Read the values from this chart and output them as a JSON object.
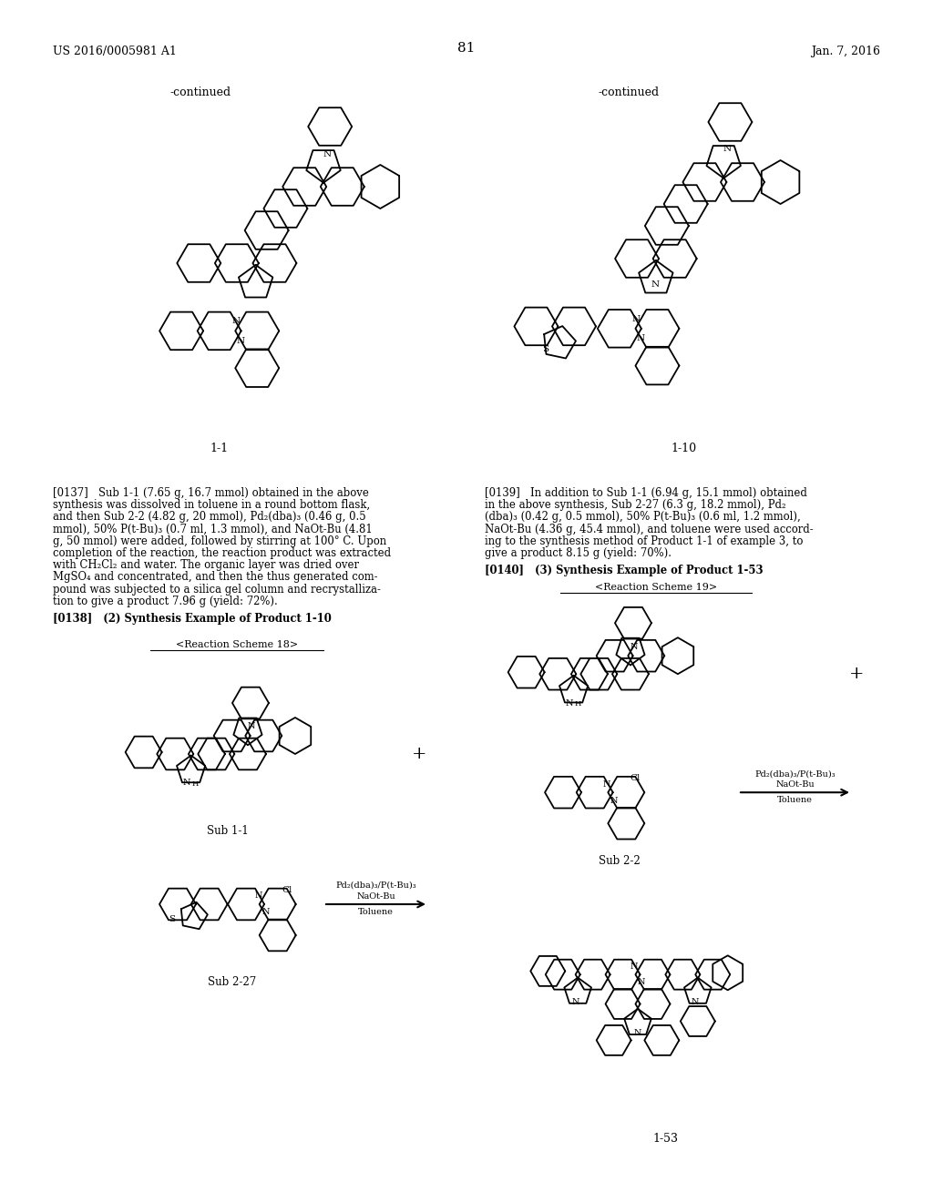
{
  "background_color": "#ffffff",
  "page_number": "81",
  "header_left": "US 2016/0005981 A1",
  "header_right": "Jan. 7, 2016",
  "continued_left": "-continued",
  "continued_right": "-continued",
  "label_1_1": "1-1",
  "label_1_10": "1-10",
  "reaction_scheme_18": "<Reaction Scheme 18>",
  "reaction_scheme_19": "<Reaction Scheme 19>",
  "sub_1_1_label": "Sub 1-1",
  "sub_2_27_label": "Sub 2-27",
  "sub_2_2_label": "Sub 2-2",
  "label_1_53": "1-53",
  "p137_lines": [
    "[0137]   Sub 1-1 (7.65 g, 16.7 mmol) obtained in the above",
    "synthesis was dissolved in toluene in a round bottom flask,",
    "and then Sub 2-2 (4.82 g, 20 mmol), Pd₂(dba)₃ (0.46 g, 0.5",
    "mmol), 50% P(t-Bu)₃ (0.7 ml, 1.3 mmol), and NaOt-Bu (4.81",
    "g, 50 mmol) were added, followed by stirring at 100° C. Upon",
    "completion of the reaction, the reaction product was extracted",
    "with CH₂Cl₂ and water. The organic layer was dried over",
    "MgSO₄ and concentrated, and then the thus generated com-",
    "pound was subjected to a silica gel column and recrystalliza-",
    "tion to give a product 7.96 g (yield: 72%)."
  ],
  "p138": "[0138]   (2) Synthesis Example of Product 1-10",
  "p139_lines": [
    "[0139]   In addition to Sub 1-1 (6.94 g, 15.1 mmol) obtained",
    "in the above synthesis, Sub 2-27 (6.3 g, 18.2 mmol), Pd₂",
    "(dba)₃ (0.42 g, 0.5 mmol), 50% P(t-Bu)₃ (0.6 ml, 1.2 mmol),",
    "NaOt-Bu (4.36 g, 45.4 mmol), and toluene were used accord-",
    "ing to the synthesis method of Product 1-1 of example 3, to",
    "give a product 8.15 g (yield: 70%)."
  ],
  "p140": "[0140]   (3) Synthesis Example of Product 1-53",
  "lw": 1.3
}
